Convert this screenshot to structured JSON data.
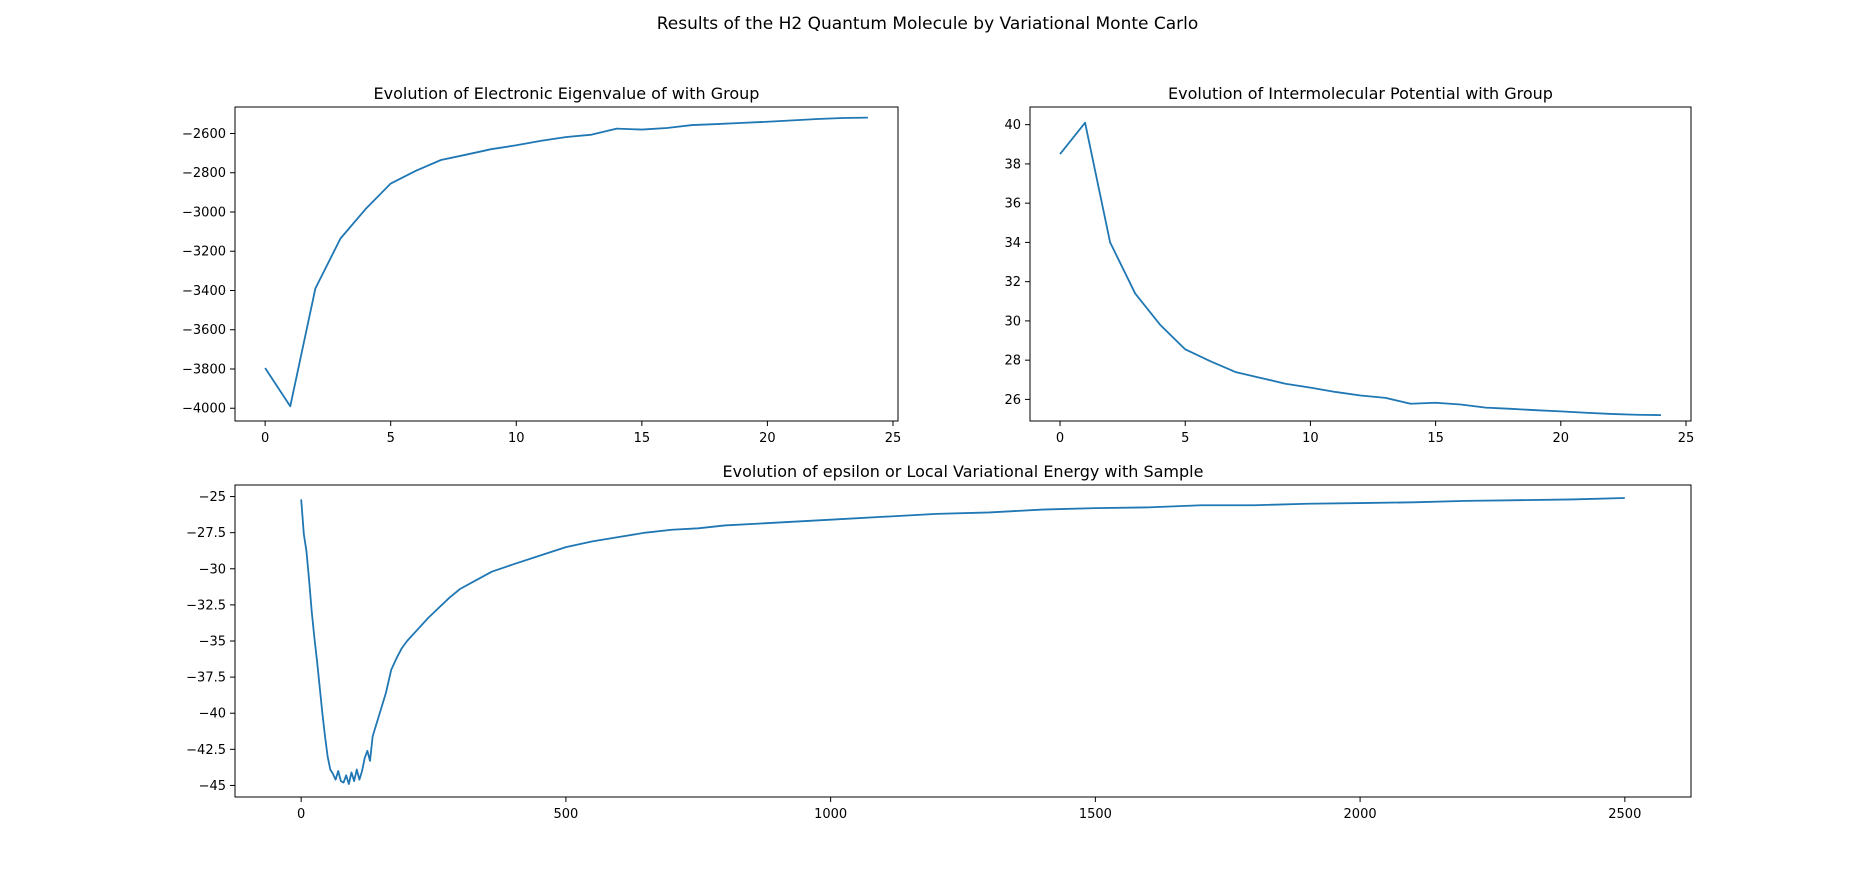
{
  "figure": {
    "suptitle": "Results of the H2 Quantum Molecule by Variational Monte Carlo"
  },
  "colors": {
    "line": "#1f77b4",
    "axes": "#000000",
    "background": "#ffffff"
  },
  "chart_data": [
    {
      "type": "line",
      "title": "Evolution of Electronic Eigenvalue of  with Group",
      "xlabel": "",
      "ylabel": "",
      "xlim": [
        -1.2,
        25.2
      ],
      "ylim": [
        -4065,
        -2465
      ],
      "xticks": [
        0,
        5,
        10,
        15,
        20,
        25
      ],
      "yticks": [
        -4000,
        -3800,
        -3600,
        -3400,
        -3200,
        -3000,
        -2800,
        -2600
      ],
      "x": [
        0,
        1,
        2,
        3,
        4,
        5,
        6,
        7,
        8,
        9,
        10,
        11,
        12,
        13,
        14,
        15,
        16,
        17,
        18,
        19,
        20,
        21,
        22,
        23,
        24
      ],
      "y": [
        -3795,
        -3990,
        -3390,
        -3135,
        -2985,
        -2855,
        -2790,
        -2735,
        -2708,
        -2680,
        -2660,
        -2637,
        -2618,
        -2606,
        -2575,
        -2580,
        -2572,
        -2557,
        -2552,
        -2546,
        -2540,
        -2533,
        -2526,
        -2521,
        -2519
      ],
      "grid": false,
      "legend": "none"
    },
    {
      "type": "line",
      "title": "Evolution of Intermolecular Potential with Group",
      "xlabel": "",
      "ylabel": "",
      "xlim": [
        -1.2,
        25.2
      ],
      "ylim": [
        24.9,
        40.9
      ],
      "xticks": [
        0,
        5,
        10,
        15,
        20,
        25
      ],
      "yticks": [
        26,
        28,
        30,
        32,
        34,
        36,
        38,
        40
      ],
      "x": [
        0,
        1,
        2,
        3,
        4,
        5,
        6,
        7,
        8,
        9,
        10,
        11,
        12,
        13,
        14,
        15,
        16,
        17,
        18,
        19,
        20,
        21,
        22,
        23,
        24
      ],
      "y": [
        38.5,
        40.1,
        34.0,
        31.4,
        29.8,
        28.55,
        27.95,
        27.4,
        27.1,
        26.8,
        26.6,
        26.38,
        26.2,
        26.08,
        25.78,
        25.83,
        25.74,
        25.58,
        25.52,
        25.45,
        25.39,
        25.32,
        25.26,
        25.22,
        25.2
      ],
      "grid": false,
      "legend": "none"
    },
    {
      "type": "line",
      "title": "Evolution of epsilon or Local Variational Energy with Sample",
      "xlabel": "",
      "ylabel": "",
      "xlim": [
        -125,
        2625
      ],
      "ylim": [
        -45.8,
        -24.2
      ],
      "xticks": [
        0,
        500,
        1000,
        1500,
        2000,
        2500
      ],
      "yticks": [
        -45.0,
        -42.5,
        -40.0,
        -37.5,
        -35.0,
        -32.5,
        -30.0,
        -27.5,
        -25.0
      ],
      "x": [
        0,
        5,
        10,
        15,
        20,
        25,
        30,
        35,
        40,
        45,
        50,
        55,
        60,
        65,
        70,
        75,
        80,
        85,
        90,
        95,
        100,
        105,
        110,
        115,
        120,
        125,
        130,
        135,
        140,
        150,
        160,
        170,
        180,
        190,
        200,
        220,
        240,
        260,
        280,
        300,
        330,
        360,
        400,
        450,
        500,
        550,
        600,
        650,
        700,
        750,
        800,
        900,
        1000,
        1100,
        1200,
        1300,
        1400,
        1500,
        1600,
        1700,
        1800,
        1900,
        2000,
        2100,
        2200,
        2300,
        2400,
        2500
      ],
      "y": [
        -25.2,
        -27.6,
        -28.8,
        -30.8,
        -33.0,
        -34.8,
        -36.4,
        -38.2,
        -40.0,
        -41.6,
        -43.0,
        -43.9,
        -44.2,
        -44.6,
        -44.0,
        -44.7,
        -44.8,
        -44.3,
        -44.9,
        -44.1,
        -44.7,
        -43.9,
        -44.6,
        -44.0,
        -43.1,
        -42.6,
        -43.3,
        -41.6,
        -41.0,
        -39.8,
        -38.6,
        -37.0,
        -36.2,
        -35.5,
        -35.0,
        -34.2,
        -33.4,
        -32.7,
        -32.0,
        -31.4,
        -30.8,
        -30.2,
        -29.7,
        -29.1,
        -28.5,
        -28.1,
        -27.8,
        -27.5,
        -27.3,
        -27.2,
        -27.0,
        -26.8,
        -26.6,
        -26.4,
        -26.2,
        -26.1,
        -25.9,
        -25.8,
        -25.75,
        -25.6,
        -25.6,
        -25.5,
        -25.45,
        -25.4,
        -25.3,
        -25.25,
        -25.2,
        -25.1
      ]
    }
  ]
}
